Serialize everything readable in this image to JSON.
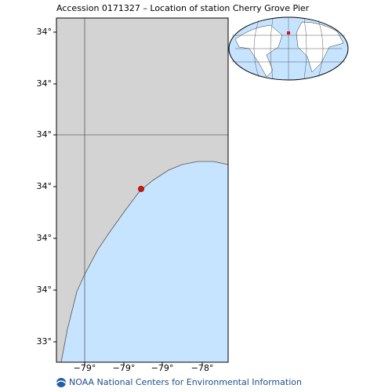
{
  "title": "Accession 0171327 – Location of station Cherry Grove Pier",
  "map": {
    "y_labels": [
      "34°",
      "34°",
      "34°",
      "34°",
      "34°",
      "34°",
      "33°"
    ],
    "x_labels": [
      "−79°",
      "−79°",
      "−79°",
      "−78°"
    ]
  },
  "footer": "NOAA National Centers for Environmental Information"
}
